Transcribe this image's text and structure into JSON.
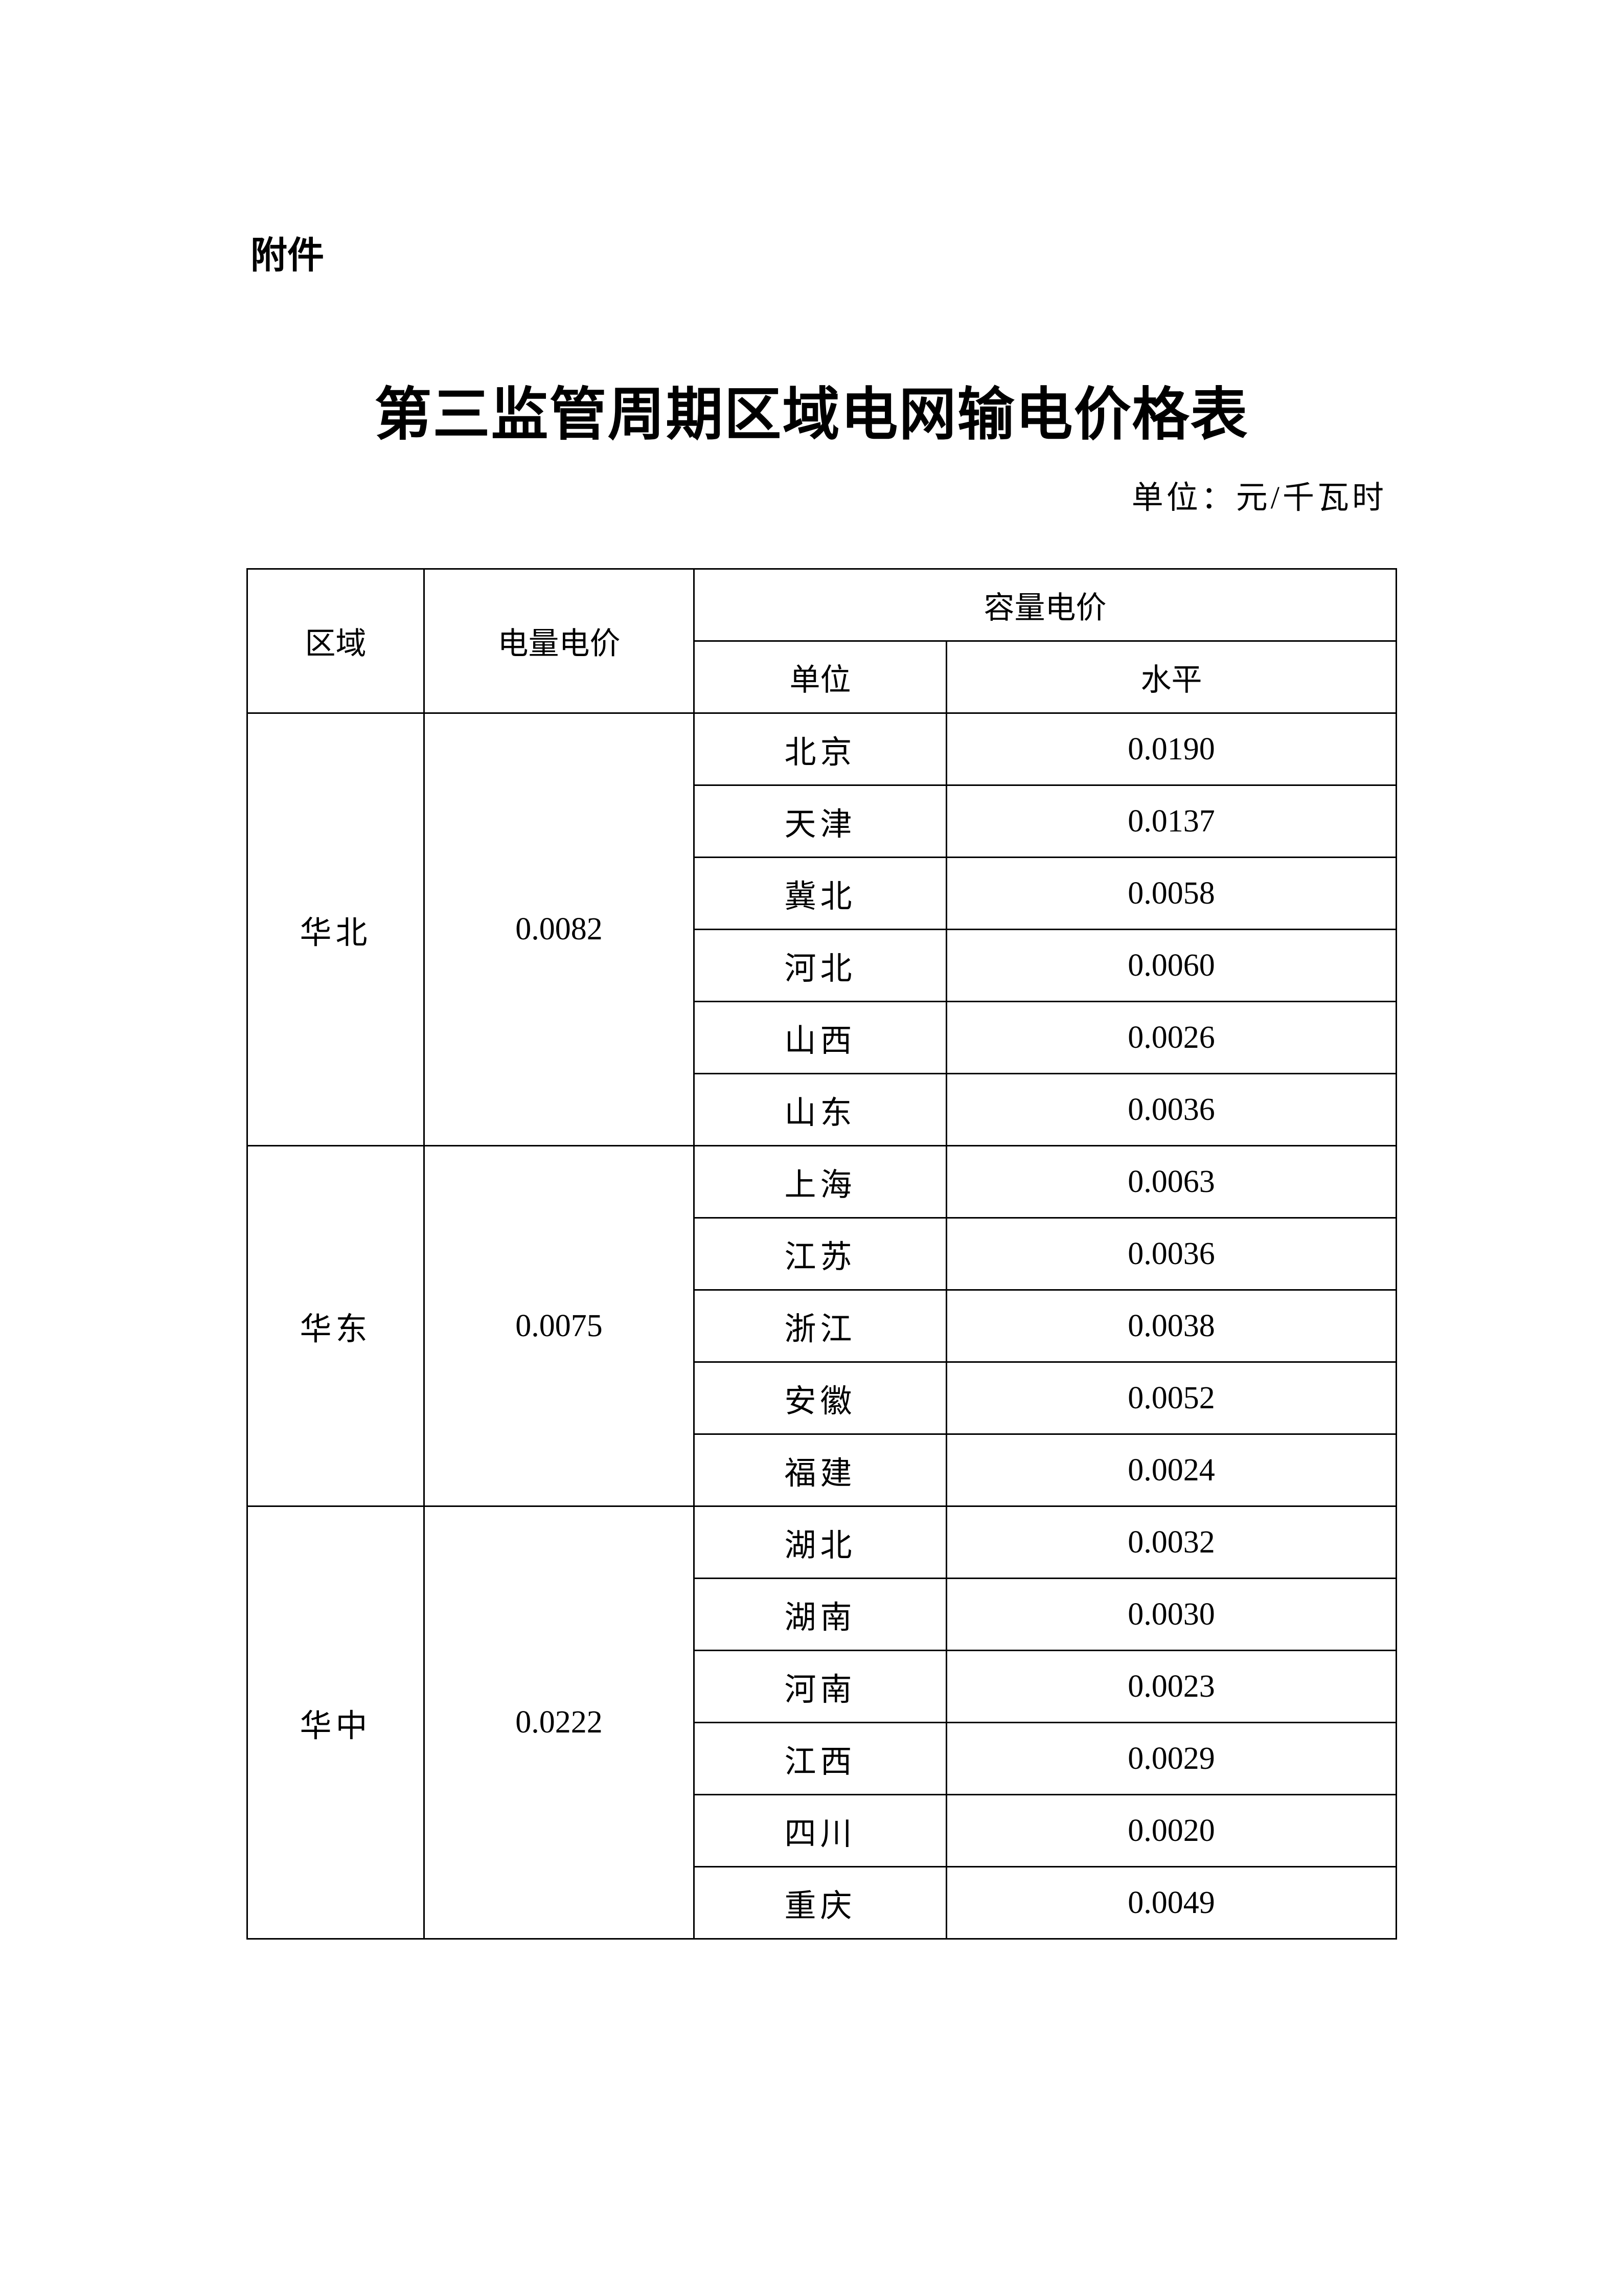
{
  "attachment_label": "附件",
  "title": "第三监管周期区域电网输电价格表",
  "unit_note": "单位：元/千瓦时",
  "table": {
    "headers": {
      "region": "区域",
      "energy_price": "电量电价",
      "capacity_price": "容量电价",
      "unit": "单位",
      "level": "水平"
    },
    "groups": [
      {
        "region": "华北",
        "energy_price": "0.0082",
        "rows": [
          {
            "unit": "北京",
            "level": "0.0190"
          },
          {
            "unit": "天津",
            "level": "0.0137"
          },
          {
            "unit": "冀北",
            "level": "0.0058"
          },
          {
            "unit": "河北",
            "level": "0.0060"
          },
          {
            "unit": "山西",
            "level": "0.0026"
          },
          {
            "unit": "山东",
            "level": "0.0036"
          }
        ]
      },
      {
        "region": "华东",
        "energy_price": "0.0075",
        "rows": [
          {
            "unit": "上海",
            "level": "0.0063"
          },
          {
            "unit": "江苏",
            "level": "0.0036"
          },
          {
            "unit": "浙江",
            "level": "0.0038"
          },
          {
            "unit": "安徽",
            "level": "0.0052"
          },
          {
            "unit": "福建",
            "level": "0.0024"
          }
        ]
      },
      {
        "region": "华中",
        "energy_price": "0.0222",
        "rows": [
          {
            "unit": "湖北",
            "level": "0.0032"
          },
          {
            "unit": "湖南",
            "level": "0.0030"
          },
          {
            "unit": "河南",
            "level": "0.0023"
          },
          {
            "unit": "江西",
            "level": "0.0029"
          },
          {
            "unit": "四川",
            "level": "0.0020"
          },
          {
            "unit": "重庆",
            "level": "0.0049"
          }
        ]
      }
    ]
  }
}
